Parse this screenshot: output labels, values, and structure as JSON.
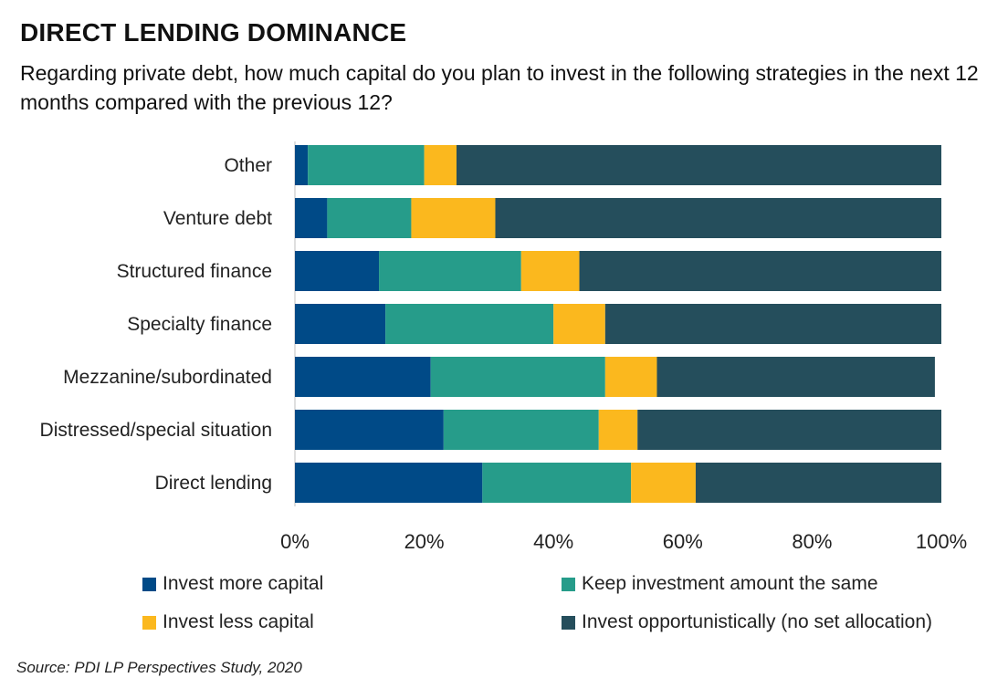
{
  "title": "DIRECT LENDING DOMINANCE",
  "subtitle": "Regarding private debt, how much capital do you plan to invest in the following strategies in the next 12 months compared with the previous 12?",
  "source": "Source: PDI LP Perspectives Study, 2020",
  "chart_data": {
    "type": "bar",
    "orientation": "horizontal",
    "stacked": true,
    "categories": [
      "Other",
      "Venture debt",
      "Structured finance",
      "Specialty finance",
      "Mezzanine/subordinated",
      "Distressed/special situation",
      "Direct lending"
    ],
    "series": [
      {
        "name": "Invest more capital",
        "color": "#004a87",
        "values": [
          2,
          5,
          13,
          14,
          21,
          23,
          29
        ]
      },
      {
        "name": "Keep investment amount the same",
        "color": "#269c8a",
        "values": [
          18,
          13,
          22,
          26,
          27,
          24,
          23
        ]
      },
      {
        "name": "Invest less capital",
        "color": "#fbb81e",
        "values": [
          5,
          13,
          9,
          8,
          8,
          6,
          10
        ]
      },
      {
        "name": "Invest opportunistically (no set allocation)",
        "color": "#254e5c",
        "values": [
          75,
          69,
          56,
          52,
          43,
          47,
          38
        ]
      }
    ],
    "xlim": [
      0,
      100
    ],
    "x_ticks": [
      "0%",
      "20%",
      "40%",
      "60%",
      "80%",
      "100%"
    ],
    "grid": false,
    "legend_position": "bottom"
  }
}
